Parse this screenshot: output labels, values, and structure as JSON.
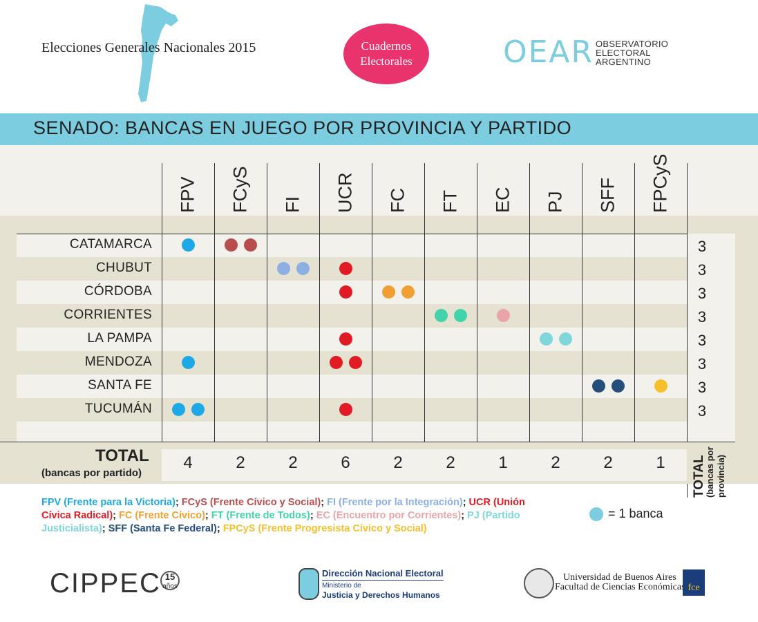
{
  "header": {
    "title": "Elecciones Generales Nacionales 2015",
    "badge_line1": "Cuadernos",
    "badge_line2": "Electorales",
    "oear_logo": "OEAR",
    "oear_line1": "OBSERVATORIO",
    "oear_line2": "ELECTORAL",
    "oear_line3": "ARGENTINO",
    "map_color": "#7dcde0"
  },
  "banner": {
    "title": "SENADO: BANCAS EN JUEGO POR PROVINCIA Y PARTIDO",
    "color": "#7dcde0"
  },
  "parties": [
    {
      "code": "FPV",
      "color": "#1ea8e6",
      "total": "4"
    },
    {
      "code": "FCyS",
      "color": "#b94d4d",
      "total": "2"
    },
    {
      "code": "FI",
      "color": "#8db0e3",
      "total": "2"
    },
    {
      "code": "UCR",
      "color": "#e01b24",
      "total": "6"
    },
    {
      "code": "FC",
      "color": "#f0a033",
      "total": "2"
    },
    {
      "code": "FT",
      "color": "#41d3a9",
      "total": "2"
    },
    {
      "code": "EC",
      "color": "#e8a6ab",
      "total": "1"
    },
    {
      "code": "PJ",
      "color": "#7fd7db",
      "total": "2"
    },
    {
      "code": "SFF",
      "color": "#254e7b",
      "total": "2"
    },
    {
      "code": "FPCyS",
      "color": "#f5c02c",
      "total": "1"
    }
  ],
  "provinces": [
    {
      "name": "CATAMARCA",
      "total": "3",
      "seats": [
        1,
        2,
        0,
        0,
        0,
        0,
        0,
        0,
        0,
        0
      ]
    },
    {
      "name": "CHUBUT",
      "total": "3",
      "seats": [
        0,
        0,
        2,
        1,
        0,
        0,
        0,
        0,
        0,
        0
      ]
    },
    {
      "name": "CÓRDOBA",
      "total": "3",
      "seats": [
        0,
        0,
        0,
        1,
        2,
        0,
        0,
        0,
        0,
        0
      ]
    },
    {
      "name": "CORRIENTES",
      "total": "3",
      "seats": [
        0,
        0,
        0,
        0,
        0,
        2,
        1,
        0,
        0,
        0
      ]
    },
    {
      "name": "LA PAMPA",
      "total": "3",
      "seats": [
        0,
        0,
        0,
        1,
        0,
        0,
        0,
        2,
        0,
        0
      ]
    },
    {
      "name": "MENDOZA",
      "total": "3",
      "seats": [
        1,
        0,
        0,
        2,
        0,
        0,
        0,
        0,
        0,
        0
      ]
    },
    {
      "name": "SANTA FE",
      "total": "3",
      "seats": [
        0,
        0,
        0,
        0,
        0,
        0,
        0,
        0,
        2,
        1
      ]
    },
    {
      "name": "TUCUMÁN",
      "total": "3",
      "seats": [
        2,
        0,
        0,
        1,
        0,
        0,
        0,
        0,
        0,
        0
      ]
    }
  ],
  "totals": {
    "label": "TOTAL",
    "sublabel": "(bancas por partido)",
    "province_total_label": "TOTAL",
    "province_total_sublabel1": "(bancas por",
    "province_total_sublabel2": "provincia)"
  },
  "legend": {
    "items": [
      {
        "text": "FPV (Frente para la Victoria)",
        "color": "#1ea8e6"
      },
      {
        "text": "FCyS (Frente Cívico y Social)",
        "color": "#b94d4d"
      },
      {
        "text": "FI (Frente por la Integración)",
        "color": "#8db0e3"
      },
      {
        "text": "UCR (Unión Cívica Radical)",
        "color": "#e01b24"
      },
      {
        "text": "FC (Frente Cívico)",
        "color": "#f0a033"
      },
      {
        "text": "FT (Frente de Todos)",
        "color": "#41d3a9"
      },
      {
        "text": "EC (Encuentro por Corrientes)",
        "color": "#e8a6ab"
      },
      {
        "text": "PJ (Partido Justicialista)",
        "color": "#7fd7db"
      },
      {
        "text": "SFF (Santa Fe Federal)",
        "color": "#254e7b"
      },
      {
        "text": "FPCyS (Frente Progresista Cívico y Social)",
        "color": "#f5c02c"
      }
    ],
    "separator": "; ",
    "key_text": "= 1 banca"
  },
  "footer": {
    "cippec": "CIPPEC",
    "cippec_15_num": "15",
    "cippec_15_sub": "años",
    "dne_title": "Dirección Nacional Electoral",
    "dne_sub1": "Ministerio de",
    "dne_sub2": "Justicia y Derechos Humanos",
    "uba_line1": "Universidad de Buenos Aires",
    "uba_line2": "Facultad de Ciencias Económicas",
    "fce": "fce"
  }
}
